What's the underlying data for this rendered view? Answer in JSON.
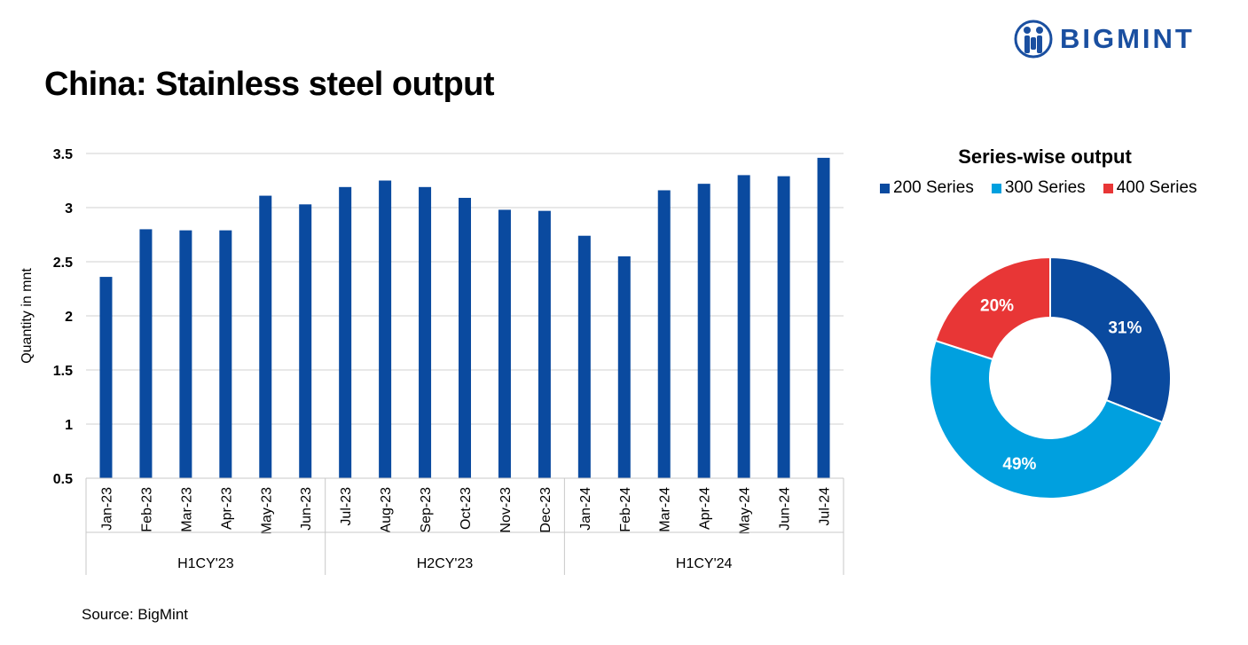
{
  "title": "China: Stainless steel output",
  "logo": {
    "text": "BIGMINT"
  },
  "source": "Source: BigMint",
  "chart_data": [
    {
      "type": "bar",
      "ylabel": "Quantity in mnt",
      "ylim": [
        0.5,
        3.5
      ],
      "yticks": [
        "0.5",
        "1",
        "1.5",
        "2",
        "2.5",
        "3",
        "3.5"
      ],
      "grid": true,
      "color": "#0a4a9f",
      "categories": [
        "Jan-23",
        "Feb-23",
        "Mar-23",
        "Apr-23",
        "May-23",
        "Jun-23",
        "Jul-23",
        "Aug-23",
        "Sep-23",
        "Oct-23",
        "Nov-23",
        "Dec-23",
        "Jan-24",
        "Feb-24",
        "Mar-24",
        "Apr-24",
        "May-24",
        "Jun-24",
        "Jul-24"
      ],
      "values": [
        2.36,
        2.8,
        2.79,
        2.79,
        3.11,
        3.03,
        3.19,
        3.25,
        3.19,
        3.09,
        2.98,
        2.97,
        2.74,
        2.55,
        3.16,
        3.22,
        3.3,
        3.29,
        3.46
      ],
      "groups": [
        {
          "label": "H1CY'23",
          "count": 6
        },
        {
          "label": "H2CY'23",
          "count": 6
        },
        {
          "label": "H1CY'24",
          "count": 7
        }
      ]
    },
    {
      "type": "pie",
      "title": "Series-wise output",
      "legend_position": "top",
      "slices": [
        {
          "name": "200 Series",
          "value": 31,
          "label": "31%",
          "color": "#0a4a9f"
        },
        {
          "name": "300 Series",
          "value": 49,
          "label": "49%",
          "color": "#00a0df"
        },
        {
          "name": "400 Series",
          "value": 20,
          "label": "20%",
          "color": "#e83636"
        }
      ]
    }
  ]
}
